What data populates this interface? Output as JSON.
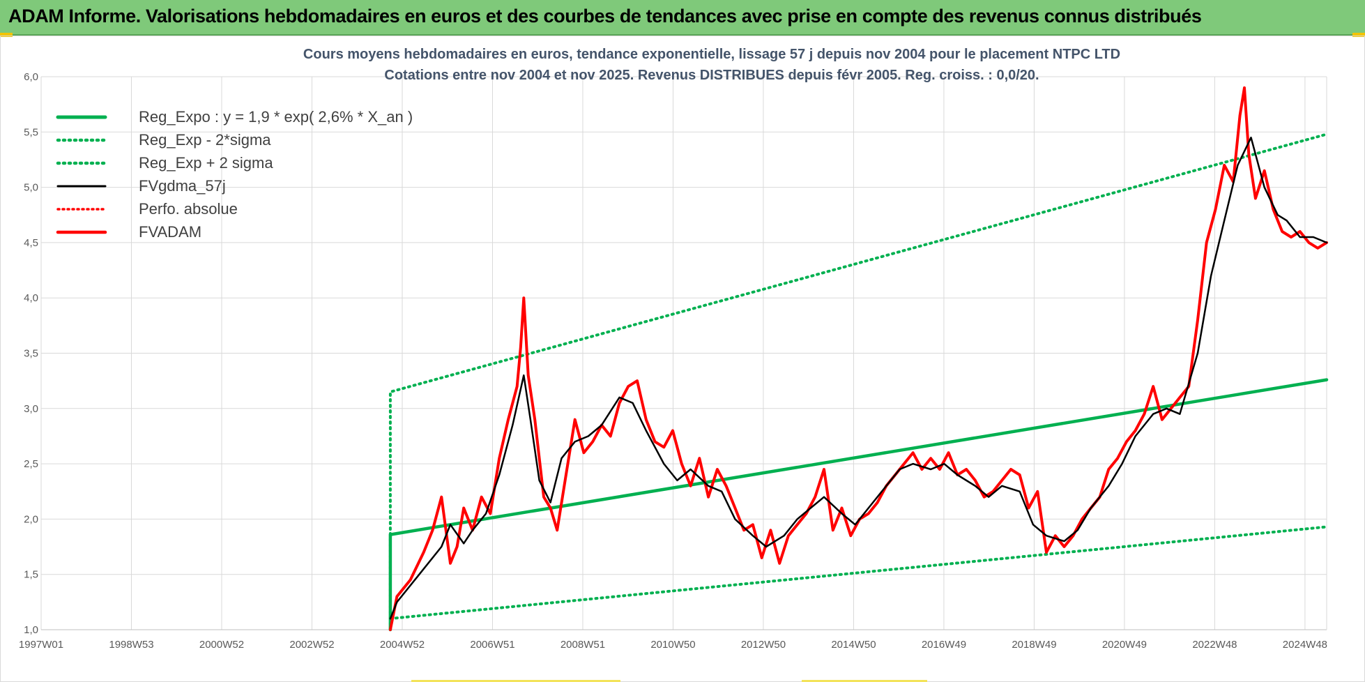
{
  "header": {
    "title": "ADAM Informe. Valorisations hebdomadaires en euros et des courbes de tendances avec prise en compte des revenus connus distribués"
  },
  "colors": {
    "header_bg": "#7fc97a",
    "green": "#00b050",
    "red": "#ff0000",
    "black": "#000000",
    "grid": "#d9d9d9"
  },
  "chart_data": {
    "type": "line",
    "title": "Cours moyens hebdomadaires en euros, tendance exponentielle, lissage 57 j depuis nov 2004 pour le placement NTPC LTD",
    "subtitle": "Cotations entre nov 2004 et nov 2025. Revenus DISTRIBUES depuis févr 2005. Reg. croiss. : 0,0/20.",
    "xlabel": "",
    "ylabel": "",
    "ylim": [
      1.0,
      6.0
    ],
    "xlim": [
      1997.0,
      2025.9
    ],
    "grid": true,
    "legend_position": "top-left",
    "y_ticks": [
      "1,0",
      "1,5",
      "2,0",
      "2,5",
      "3,0",
      "3,5",
      "4,0",
      "4,5",
      "5,0",
      "5,5",
      "6,0"
    ],
    "x_tick_labels": [
      "1997W01",
      "1998W53",
      "2000W52",
      "2002W52",
      "2004W52",
      "2006W51",
      "2008W51",
      "2010W50",
      "2012W50",
      "2014W50",
      "2016W49",
      "2018W49",
      "2020W49",
      "2022W48",
      "2024W48"
    ],
    "series": [
      {
        "name": "Reg_Expo : y = 1,9 * exp( 2,6% *  X_an )",
        "style": "solid-green-thick",
        "x": [
          2004.85,
          2004.85,
          2025.9
        ],
        "y": [
          1.0,
          1.86,
          3.26
        ]
      },
      {
        "name": "Reg_Exp - 2*sigma",
        "style": "dotted-green",
        "x": [
          2004.85,
          2025.9
        ],
        "y": [
          1.1,
          1.93
        ]
      },
      {
        "name": "Reg_Exp + 2 sigma",
        "style": "dotted-green",
        "x": [
          2004.85,
          2004.85,
          2025.9
        ],
        "y": [
          1.0,
          3.15,
          5.48
        ]
      },
      {
        "name": "FVgdma_57j",
        "style": "solid-black",
        "x": [
          2004.85,
          2005.0,
          2005.5,
          2006.0,
          2006.2,
          2006.5,
          2006.7,
          2007.0,
          2007.3,
          2007.6,
          2007.85,
          2008.0,
          2008.2,
          2008.45,
          2008.7,
          2009.0,
          2009.3,
          2009.6,
          2010.0,
          2010.3,
          2010.6,
          2011.0,
          2011.3,
          2011.6,
          2012.0,
          2012.3,
          2012.6,
          2013.0,
          2013.3,
          2013.7,
          2014.0,
          2014.3,
          2014.6,
          2015.0,
          2015.3,
          2015.6,
          2016.0,
          2016.3,
          2016.6,
          2017.0,
          2017.3,
          2017.6,
          2018.0,
          2018.3,
          2018.6,
          2019.0,
          2019.3,
          2019.6,
          2020.0,
          2020.3,
          2020.6,
          2021.0,
          2021.3,
          2021.6,
          2022.0,
          2022.3,
          2022.6,
          2023.0,
          2023.3,
          2023.6,
          2023.9,
          2024.2,
          2024.5,
          2024.8,
          2025.0,
          2025.3,
          2025.6,
          2025.9
        ],
        "y": [
          1.1,
          1.25,
          1.5,
          1.75,
          1.95,
          1.78,
          1.9,
          2.05,
          2.4,
          2.85,
          3.3,
          2.9,
          2.35,
          2.15,
          2.55,
          2.7,
          2.75,
          2.85,
          3.1,
          3.05,
          2.8,
          2.5,
          2.35,
          2.45,
          2.3,
          2.25,
          2.0,
          1.85,
          1.75,
          1.85,
          2.0,
          2.1,
          2.2,
          2.05,
          1.95,
          2.1,
          2.3,
          2.45,
          2.5,
          2.45,
          2.5,
          2.4,
          2.3,
          2.2,
          2.3,
          2.25,
          1.95,
          1.85,
          1.8,
          1.9,
          2.1,
          2.3,
          2.5,
          2.75,
          2.95,
          3.0,
          2.95,
          3.5,
          4.2,
          4.7,
          5.2,
          5.45,
          5.0,
          4.75,
          4.7,
          4.55,
          4.55,
          4.5
        ]
      },
      {
        "name": "Perfo. absolue",
        "style": "dotted-red",
        "x": [],
        "y": []
      },
      {
        "name": "FVADAM",
        "style": "solid-red-thick",
        "x": [
          2004.85,
          2005.0,
          2005.3,
          2005.6,
          2005.8,
          2006.0,
          2006.2,
          2006.35,
          2006.5,
          2006.7,
          2006.9,
          2007.1,
          2007.3,
          2007.5,
          2007.7,
          2007.78,
          2007.85,
          2007.95,
          2008.1,
          2008.3,
          2008.45,
          2008.6,
          2008.8,
          2009.0,
          2009.2,
          2009.4,
          2009.6,
          2009.8,
          2010.0,
          2010.2,
          2010.4,
          2010.6,
          2010.8,
          2011.0,
          2011.2,
          2011.4,
          2011.6,
          2011.8,
          2012.0,
          2012.2,
          2012.4,
          2012.6,
          2012.8,
          2013.0,
          2013.2,
          2013.4,
          2013.6,
          2013.8,
          2014.0,
          2014.2,
          2014.4,
          2014.6,
          2014.8,
          2015.0,
          2015.2,
          2015.4,
          2015.6,
          2015.8,
          2016.0,
          2016.2,
          2016.4,
          2016.6,
          2016.8,
          2017.0,
          2017.2,
          2017.4,
          2017.6,
          2017.8,
          2018.0,
          2018.2,
          2018.4,
          2018.6,
          2018.8,
          2019.0,
          2019.2,
          2019.4,
          2019.6,
          2019.8,
          2020.0,
          2020.2,
          2020.4,
          2020.6,
          2020.8,
          2021.0,
          2021.2,
          2021.4,
          2021.6,
          2021.8,
          2022.0,
          2022.2,
          2022.4,
          2022.6,
          2022.8,
          2023.0,
          2023.2,
          2023.4,
          2023.6,
          2023.8,
          2023.95,
          2024.05,
          2024.15,
          2024.3,
          2024.5,
          2024.7,
          2024.9,
          2025.1,
          2025.3,
          2025.5,
          2025.7,
          2025.9
        ],
        "y": [
          1.0,
          1.3,
          1.45,
          1.7,
          1.9,
          2.2,
          1.6,
          1.75,
          2.1,
          1.9,
          2.2,
          2.05,
          2.55,
          2.9,
          3.2,
          3.55,
          4.0,
          3.3,
          2.9,
          2.2,
          2.1,
          1.9,
          2.4,
          2.9,
          2.6,
          2.7,
          2.85,
          2.75,
          3.05,
          3.2,
          3.25,
          2.9,
          2.7,
          2.65,
          2.8,
          2.5,
          2.3,
          2.55,
          2.2,
          2.45,
          2.3,
          2.1,
          1.9,
          1.95,
          1.65,
          1.9,
          1.6,
          1.85,
          1.95,
          2.05,
          2.2,
          2.45,
          1.9,
          2.1,
          1.85,
          2.0,
          2.05,
          2.15,
          2.3,
          2.4,
          2.5,
          2.6,
          2.45,
          2.55,
          2.45,
          2.6,
          2.4,
          2.45,
          2.35,
          2.2,
          2.25,
          2.35,
          2.45,
          2.4,
          2.1,
          2.25,
          1.7,
          1.85,
          1.75,
          1.85,
          2.0,
          2.1,
          2.2,
          2.45,
          2.55,
          2.7,
          2.8,
          2.95,
          3.2,
          2.9,
          3.0,
          3.1,
          3.2,
          3.8,
          4.5,
          4.8,
          5.2,
          5.05,
          5.65,
          5.9,
          5.3,
          4.9,
          5.15,
          4.8,
          4.6,
          4.55,
          4.6,
          4.5,
          4.45,
          4.5
        ]
      }
    ]
  }
}
